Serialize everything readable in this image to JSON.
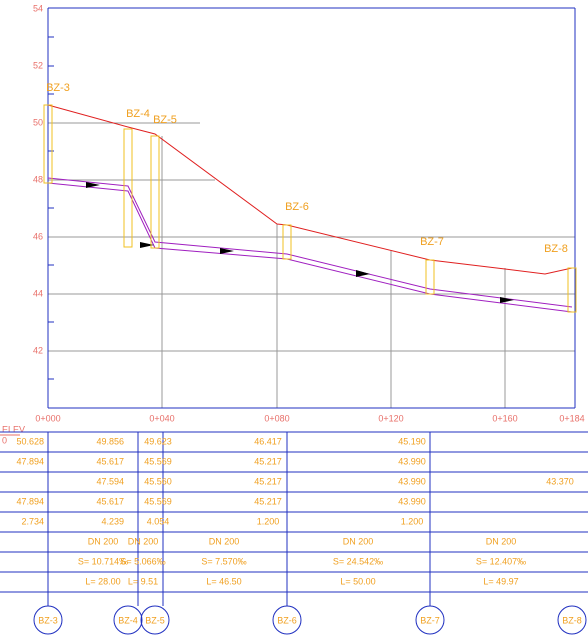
{
  "axis": {
    "y_labels": [
      "54",
      "52",
      "50",
      "48",
      "46",
      "44",
      "42"
    ],
    "x_labels": [
      "0+000",
      "0+040",
      "0+080",
      "0+120",
      "0+160",
      "0+184"
    ],
    "elev_label": "ELEV",
    "elev_sub": "0"
  },
  "stations": [
    "BZ-3",
    "BZ-4",
    "BZ-5",
    "BZ-6",
    "BZ-7",
    "BZ-8"
  ],
  "table": {
    "station_rows": [
      [
        "50.628",
        "49.856",
        "49.623",
        "46.417",
        "45.190"
      ],
      [
        "47.894",
        "45.617",
        "45.569",
        "45.217",
        "43.990"
      ],
      [
        "47.594",
        "45.560",
        "45.217",
        "43.990",
        "43.370"
      ],
      [
        "47.894",
        "45.617",
        "45.569",
        "45.217",
        "43.990"
      ],
      [
        "2.734",
        "4.239",
        "4.054",
        "1.200",
        "1.200"
      ]
    ],
    "segment_rows": [
      [
        "DN 200",
        "DN 200",
        "DN 200",
        "DN 200",
        "DN 200"
      ],
      [
        "S= 10.714‰",
        "S= 5.066‰",
        "S= 7.570‰",
        "S= 24.542‰",
        "S= 12.407‰"
      ],
      [
        "L= 28.00",
        "L= 9.51",
        "L= 46.50",
        "L= 50.00",
        "L= 49.97"
      ]
    ]
  }
}
